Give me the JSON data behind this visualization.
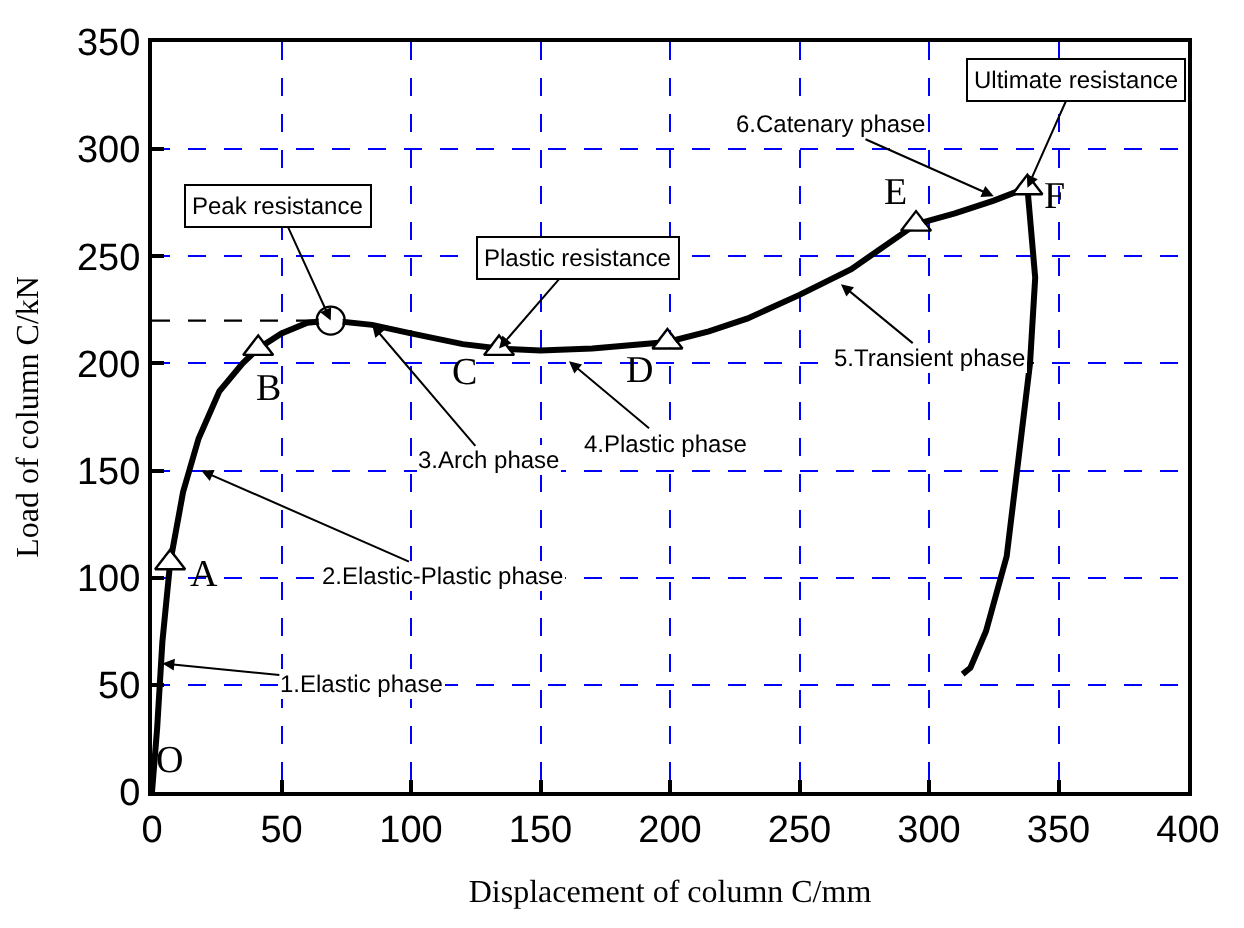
{
  "chart_data": {
    "type": "line",
    "xlabel": "Displacement of column C/mm",
    "ylabel": "Load of column C/kN",
    "xlim": [
      0,
      400
    ],
    "xticks": [
      0,
      50,
      100,
      150,
      200,
      250,
      300,
      350,
      400
    ],
    "ylim": [
      0,
      350
    ],
    "yticks": [
      0,
      50,
      100,
      150,
      200,
      250,
      300,
      350
    ],
    "grid": true,
    "series": [
      {
        "color": "#000000",
        "marker": "none",
        "line_style": "solid",
        "x": [
          0,
          2,
          4,
          7,
          12,
          18,
          26,
          35,
          41,
          50,
          60,
          69,
          85,
          100,
          120,
          134,
          150,
          170,
          199,
          215,
          230,
          250,
          270,
          295,
          310,
          325,
          338,
          341,
          339,
          335,
          330,
          322,
          316,
          313
        ],
        "values": [
          0,
          30,
          70,
          107,
          140,
          165,
          187,
          200,
          207,
          214,
          219,
          220,
          218,
          214,
          209,
          207,
          206,
          207,
          210,
          215,
          221,
          232,
          244,
          265,
          270,
          276,
          282,
          240,
          200,
          160,
          110,
          75,
          58,
          55
        ]
      },
      {
        "type": "line",
        "color": "#000000",
        "marker": "none",
        "line_style": "dashed",
        "x": [
          0,
          69
        ],
        "values": [
          220,
          220
        ]
      },
      {
        "type": "scatter",
        "color": "#000000",
        "marker": "triangle",
        "x": [
          7,
          41,
          134,
          199,
          295,
          338
        ],
        "values": [
          107,
          207,
          207,
          210,
          265,
          282
        ]
      },
      {
        "type": "scatter",
        "color": "#000000",
        "marker": "circle",
        "x": [
          69
        ],
        "values": [
          220
        ]
      }
    ],
    "annotations": [
      {
        "text": "1.Elastic phase",
        "x": 4,
        "y": 60
      },
      {
        "text": "2.Elastic-Plastic phase",
        "x": 19,
        "y": 150
      },
      {
        "text": "3.Arch phase",
        "x": 85,
        "y": 218
      },
      {
        "text": "4.Plastic phase",
        "x": 161,
        "y": 201
      },
      {
        "text": "5.Transient phase",
        "x": 266,
        "y": 237
      },
      {
        "text": "6.Catenary phase",
        "x": 325,
        "y": 278
      },
      {
        "text": "Peak resistance",
        "x": 69,
        "y": 220
      },
      {
        "text": "Plastic resistance",
        "x": 134,
        "y": 207
      },
      {
        "text": "Ultimate resistance",
        "x": 338,
        "y": 282
      },
      {
        "text": "O",
        "x": 0,
        "y": 0
      },
      {
        "text": "A",
        "x": 7,
        "y": 107
      },
      {
        "text": "B",
        "x": 41,
        "y": 207
      },
      {
        "text": "C",
        "x": 134,
        "y": 207
      },
      {
        "text": "D",
        "x": 199,
        "y": 210
      },
      {
        "text": "E",
        "x": 295,
        "y": 265
      },
      {
        "text": "F",
        "x": 338,
        "y": 282
      }
    ]
  }
}
